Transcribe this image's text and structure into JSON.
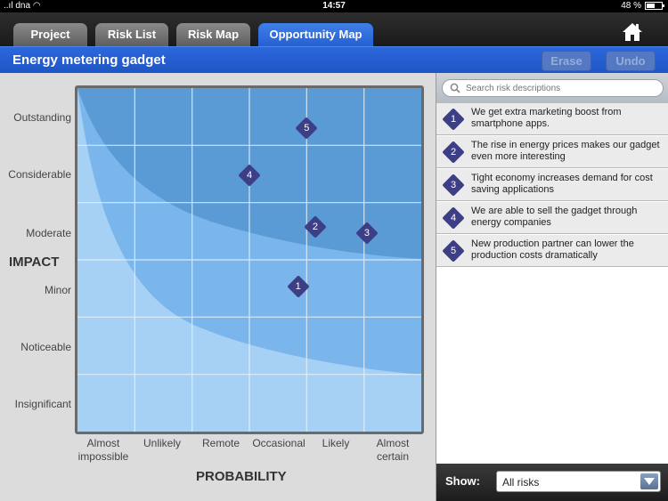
{
  "status": {
    "carrier": "dna",
    "time": "14:57",
    "battery": "48 %",
    "battery_level": 0.48
  },
  "tabs": [
    {
      "label": "Project",
      "active": false
    },
    {
      "label": "Risk List",
      "active": false
    },
    {
      "label": "Risk Map",
      "active": false
    },
    {
      "label": "Opportunity Map",
      "active": true
    }
  ],
  "home_icon": "home-icon",
  "header": {
    "title": "Energy metering gadget",
    "erase_label": "Erase",
    "undo_label": "Undo"
  },
  "chart": {
    "y_axis_title": "IMPACT",
    "x_axis_title": "PROBABILITY",
    "impact_levels": [
      "Outstanding",
      "Considerable",
      "Moderate",
      "Minor",
      "Noticeable",
      "Insignificant"
    ],
    "probability_levels": [
      "Almost\nimpossible",
      "Unlikely",
      "Remote",
      "Occasional",
      "Likely",
      "Almost\ncertain"
    ],
    "colors": {
      "dark_zone": "#5b9bd5",
      "mid_zone": "#7ab6ec",
      "light_zone": "#a7d1f4",
      "grid": "#e6f1fb",
      "marker": "#3d3f86"
    }
  },
  "chart_data": {
    "type": "scatter",
    "x_categories": [
      "Almost impossible",
      "Unlikely",
      "Remote",
      "Occasional",
      "Likely",
      "Almost certain"
    ],
    "y_categories": [
      "Insignificant",
      "Noticeable",
      "Minor",
      "Moderate",
      "Considerable",
      "Outstanding"
    ],
    "points": [
      {
        "id": "1",
        "probability": 4.35,
        "impact": 3.03
      },
      {
        "id": "2",
        "probability": 4.65,
        "impact": 4.07
      },
      {
        "id": "3",
        "probability": 5.55,
        "impact": 3.97
      },
      {
        "id": "4",
        "probability": 3.5,
        "impact": 4.97
      },
      {
        "id": "5",
        "probability": 4.5,
        "impact": 5.8
      }
    ]
  },
  "search": {
    "placeholder": "Search risk descriptions"
  },
  "risks": [
    {
      "id": "1",
      "description": "We get extra marketing boost from smartphone apps."
    },
    {
      "id": "2",
      "description": "The rise in energy prices makes our gadget even more interesting"
    },
    {
      "id": "3",
      "description": "Tight economy increases demand for cost saving applications"
    },
    {
      "id": "4",
      "description": "We are able to sell the gadget through energy companies"
    },
    {
      "id": "5",
      "description": "New production partner can lower the production costs dramatically"
    }
  ],
  "footer": {
    "show_label": "Show:",
    "filter_value": "All risks"
  }
}
